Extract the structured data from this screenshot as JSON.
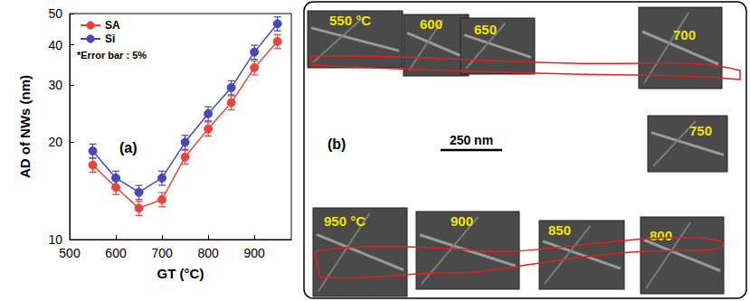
{
  "chart_data": {
    "type": "line",
    "x_label": "GT (°C)",
    "y_label": "AD of NWs (nm)",
    "x": [
      550,
      600,
      650,
      700,
      750,
      800,
      850,
      900,
      950
    ],
    "series": [
      {
        "name": "SA",
        "color": "#e8453c",
        "marker": "circle",
        "values": [
          17,
          14.5,
          12.5,
          13.3,
          18,
          22,
          26.5,
          34,
          41
        ],
        "errors": [
          0.85,
          0.73,
          0.63,
          0.67,
          0.9,
          1.1,
          1.33,
          1.7,
          2.05
        ]
      },
      {
        "name": "Si",
        "color": "#4848b8",
        "marker": "circle",
        "values": [
          18.8,
          15.5,
          14,
          15.5,
          20,
          24.5,
          29.5,
          38,
          46.5
        ],
        "errors": [
          0.94,
          0.78,
          0.7,
          0.78,
          1.0,
          1.23,
          1.48,
          1.9,
          2.33
        ]
      }
    ],
    "xlim": [
      500,
      980
    ],
    "xticks": [
      500,
      600,
      700,
      800,
      900
    ],
    "ylim": [
      10,
      50
    ],
    "yticks": [
      10,
      20,
      30,
      40,
      50
    ],
    "log": "y",
    "grid": false,
    "legend": "upper left",
    "annotations": [
      "(a)",
      "*Error bar : 5%"
    ]
  },
  "panel_b": {
    "label": "(b)",
    "scale_bar": "250 nm",
    "images": [
      "550 °C",
      "600",
      "650",
      "700",
      "750",
      "800",
      "850",
      "900",
      "950 °C"
    ]
  }
}
